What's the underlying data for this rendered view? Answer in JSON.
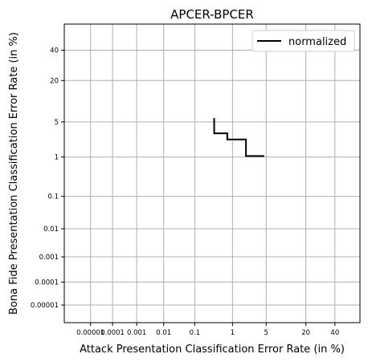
{
  "chart_data": {
    "type": "line",
    "title": "APCER-BPCER",
    "xlabel": "Attack Presentation Classification Error Rate (in %)",
    "ylabel": "Bona Fide Presentation Classification Error Rate (in %)",
    "axis_scale": "probit (normal deviate) on percent",
    "xlim": [
      5e-07,
      60
    ],
    "ylim": [
      1.5e-06,
      60
    ],
    "x_ticks": [
      {
        "value": 1e-05,
        "label": "0.00001"
      },
      {
        "value": 0.0001,
        "label": "0.0001"
      },
      {
        "value": 0.001,
        "label": "0.001"
      },
      {
        "value": 0.01,
        "label": "0.01"
      },
      {
        "value": 0.1,
        "label": "0.1"
      },
      {
        "value": 1,
        "label": "1"
      },
      {
        "value": 5,
        "label": "5"
      },
      {
        "value": 20,
        "label": "20"
      },
      {
        "value": 40,
        "label": "40"
      }
    ],
    "y_ticks": [
      {
        "value": 1e-05,
        "label": "0.00001"
      },
      {
        "value": 0.0001,
        "label": "0.0001"
      },
      {
        "value": 0.001,
        "label": "0.001"
      },
      {
        "value": 0.01,
        "label": "0.01"
      },
      {
        "value": 0.1,
        "label": "0.1"
      },
      {
        "value": 1,
        "label": "1"
      },
      {
        "value": 5,
        "label": "5"
      },
      {
        "value": 20,
        "label": "20"
      },
      {
        "value": 40,
        "label": "40"
      }
    ],
    "grid": true,
    "legend": {
      "position": "top-right"
    },
    "series": [
      {
        "name": "normalized",
        "color": "#000000",
        "x": [
          0.35,
          0.35,
          0.75,
          0.75,
          2.0,
          2.0,
          4.6
        ],
        "y": [
          5.8,
          3.1,
          3.1,
          2.35,
          2.35,
          1.05,
          1.05
        ]
      }
    ]
  }
}
